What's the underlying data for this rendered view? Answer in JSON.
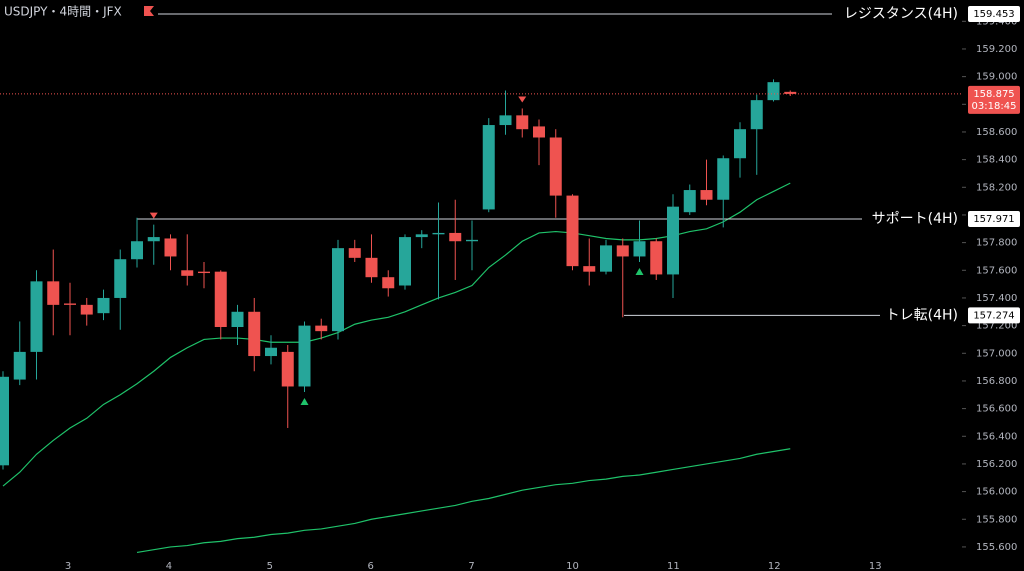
{
  "chart_data": {
    "type": "candlestick",
    "title": "USDJPY・4時間・JFX",
    "up_color": "#26a69a",
    "down_color": "#ef5350",
    "open": [
      156.19,
      156.81,
      157.01,
      157.52,
      157.36,
      157.35,
      157.29,
      157.4,
      157.68,
      157.81,
      157.83,
      157.6,
      157.59,
      157.59,
      157.19,
      157.3,
      156.98,
      157.01,
      156.76,
      157.2,
      157.16,
      157.76,
      157.69,
      157.55,
      157.49,
      157.84,
      157.86,
      157.87,
      157.81,
      158.04,
      158.65,
      158.72,
      158.64,
      158.56,
      158.14,
      157.63,
      157.59,
      157.78,
      157.7,
      157.81,
      157.57,
      158.02,
      158.18,
      158.11,
      158.41,
      158.62,
      158.83,
      158.89
    ],
    "high": [
      156.87,
      157.23,
      157.6,
      157.75,
      157.51,
      157.4,
      157.46,
      157.75,
      157.98,
      157.93,
      157.86,
      157.86,
      157.66,
      157.6,
      157.35,
      157.4,
      157.13,
      157.06,
      157.23,
      157.25,
      157.82,
      157.82,
      157.86,
      157.6,
      157.86,
      157.89,
      158.09,
      158.11,
      157.96,
      158.7,
      158.9,
      158.77,
      158.69,
      158.62,
      158.15,
      157.83,
      157.82,
      157.83,
      157.96,
      157.83,
      158.15,
      158.22,
      158.4,
      158.43,
      158.67,
      158.87,
      158.98,
      158.9
    ],
    "low": [
      156.16,
      156.77,
      156.81,
      157.13,
      157.13,
      157.2,
      157.24,
      157.17,
      157.62,
      157.64,
      157.6,
      157.49,
      157.47,
      157.1,
      157.06,
      156.87,
      156.92,
      156.46,
      156.72,
      157.1,
      157.1,
      157.66,
      157.51,
      157.41,
      157.46,
      157.76,
      157.39,
      157.53,
      157.6,
      158.02,
      158.58,
      158.56,
      158.36,
      157.98,
      157.6,
      157.49,
      157.57,
      157.26,
      157.66,
      157.53,
      157.4,
      158.0,
      158.07,
      157.91,
      158.27,
      158.29,
      158.82,
      158.86
    ],
    "close": [
      156.83,
      157.01,
      157.52,
      157.35,
      157.35,
      157.28,
      157.4,
      157.68,
      157.81,
      157.84,
      157.7,
      157.56,
      157.58,
      157.19,
      157.3,
      156.98,
      157.04,
      156.76,
      157.2,
      157.16,
      157.76,
      157.69,
      157.55,
      157.47,
      157.84,
      157.86,
      157.87,
      157.81,
      157.82,
      158.65,
      158.72,
      158.62,
      158.56,
      158.14,
      157.63,
      157.59,
      157.78,
      157.7,
      157.81,
      157.57,
      158.06,
      158.18,
      158.11,
      158.41,
      158.62,
      158.83,
      158.96,
      158.875
    ],
    "series": [
      {
        "color": "#1fc26a",
        "values": [
          156.04,
          156.14,
          156.27,
          156.37,
          156.46,
          156.53,
          156.63,
          156.7,
          156.78,
          156.87,
          156.97,
          157.04,
          157.1,
          157.11,
          157.11,
          157.1,
          157.08,
          157.08,
          157.08,
          157.11,
          157.15,
          157.21,
          157.24,
          157.26,
          157.3,
          157.35,
          157.4,
          157.44,
          157.49,
          157.62,
          157.71,
          157.81,
          157.87,
          157.88,
          157.87,
          157.85,
          157.83,
          157.82,
          157.82,
          157.83,
          157.85,
          157.88,
          157.9,
          157.95,
          158.02,
          158.11,
          158.17,
          158.23
        ]
      },
      {
        "color": "#1fc26a",
        "values": [
          null,
          null,
          null,
          null,
          null,
          null,
          null,
          null,
          155.56,
          155.58,
          155.6,
          155.61,
          155.63,
          155.64,
          155.66,
          155.67,
          155.69,
          155.7,
          155.72,
          155.73,
          155.75,
          155.77,
          155.8,
          155.82,
          155.84,
          155.86,
          155.88,
          155.9,
          155.93,
          155.95,
          155.98,
          156.01,
          156.03,
          156.05,
          156.06,
          156.08,
          156.09,
          156.11,
          156.12,
          156.14,
          156.16,
          156.18,
          156.2,
          156.22,
          156.24,
          156.27,
          156.29,
          156.31
        ]
      }
    ],
    "levels": [
      {
        "label": "レジスタンス(4H)",
        "value": 159.453
      },
      {
        "label": "サポート(4H)",
        "value": 157.971
      },
      {
        "label": "トレ転(4H)",
        "value": 157.274
      }
    ],
    "last_price": 158.875,
    "countdown": "03:18:45",
    "x_labels": [
      "3",
      "4",
      "5",
      "6",
      "7",
      "10",
      "11",
      "12",
      "13"
    ],
    "ylim": [
      155.426,
      159.554
    ],
    "yticks": [
      {
        "value": 155.6,
        "label": "155.600"
      },
      {
        "value": 155.8,
        "label": "155.800"
      },
      {
        "value": 156.0,
        "label": "156.000"
      },
      {
        "value": 156.2,
        "label": "156.200"
      },
      {
        "value": 156.4,
        "label": "156.400"
      },
      {
        "value": 156.6,
        "label": "156.600"
      },
      {
        "value": 156.8,
        "label": "156.800"
      },
      {
        "value": 157.0,
        "label": "157.000"
      },
      {
        "value": 157.2,
        "label": "157.200"
      },
      {
        "value": 157.4,
        "label": "157.400"
      },
      {
        "value": 157.6,
        "label": "157.600"
      },
      {
        "value": 157.8,
        "label": "157.800"
      },
      {
        "value": 158.0,
        "label": "158.000"
      },
      {
        "value": 158.2,
        "label": "158.200"
      },
      {
        "value": 158.4,
        "label": "158.400"
      },
      {
        "value": 158.6,
        "label": "158.600"
      },
      {
        "value": 158.8,
        "label": "158.800"
      },
      {
        "value": 159.0,
        "label": "159.000"
      },
      {
        "value": 159.2,
        "label": "159.200"
      },
      {
        "value": 159.4,
        "label": "159.400"
      }
    ]
  }
}
